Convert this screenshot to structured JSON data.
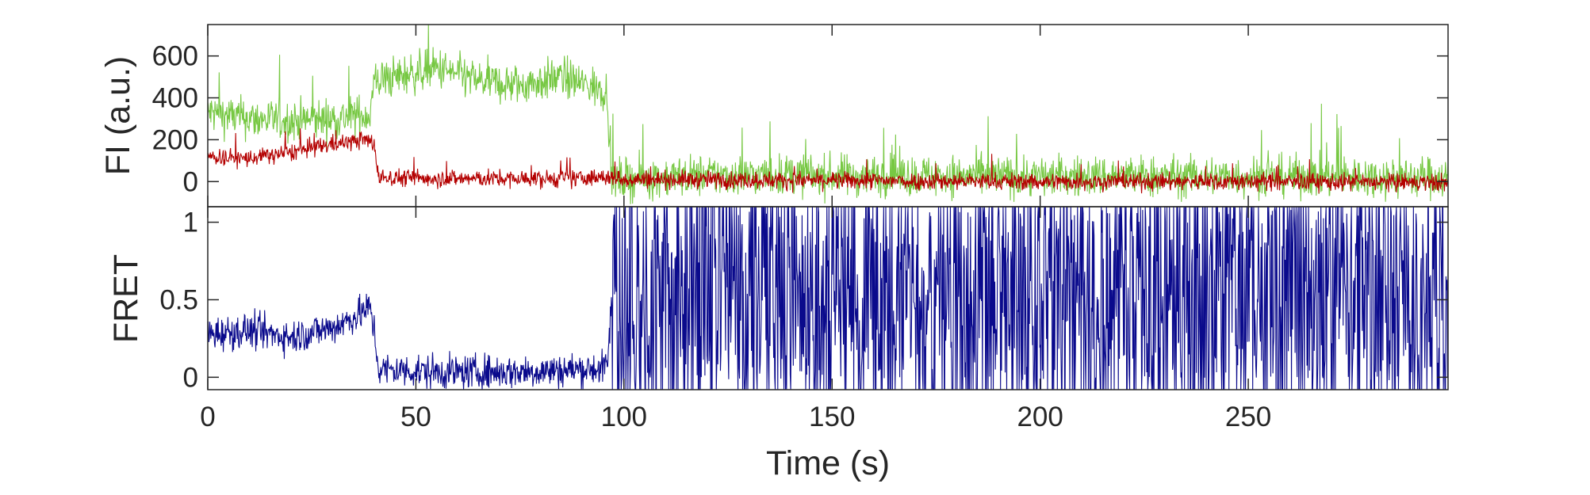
{
  "chart_data": [
    {
      "type": "line",
      "panel": "top",
      "title": "",
      "xlabel": "",
      "ylabel": "FI (a.u.)",
      "xlim": [
        0,
        298
      ],
      "ylim": [
        -120,
        750
      ],
      "yticks": [
        0,
        200,
        400,
        600
      ],
      "ytick_labels": [
        "0",
        "200",
        "400",
        "600"
      ],
      "grid": false,
      "legend": "none",
      "series": [
        {
          "color": "#77c843",
          "points": [
            [
              0,
              330
            ],
            [
              10,
              300
            ],
            [
              20,
              290
            ],
            [
              30,
              300
            ],
            [
              39,
              320
            ],
            [
              40,
              480
            ],
            [
              45,
              500
            ],
            [
              55,
              540
            ],
            [
              65,
              480
            ],
            [
              75,
              460
            ],
            [
              85,
              500
            ],
            [
              96,
              430
            ],
            [
              97,
              10
            ],
            [
              120,
              30
            ],
            [
              150,
              30
            ],
            [
              200,
              25
            ],
            [
              250,
              25
            ],
            [
              298,
              20
            ]
          ],
          "noise": 70
        },
        {
          "color": "#b40000",
          "points": [
            [
              0,
              120
            ],
            [
              10,
              110
            ],
            [
              20,
              140
            ],
            [
              30,
              180
            ],
            [
              38,
              200
            ],
            [
              40,
              180
            ],
            [
              41,
              20
            ],
            [
              60,
              15
            ],
            [
              80,
              12
            ],
            [
              97,
              20
            ],
            [
              98,
              12
            ],
            [
              150,
              5
            ],
            [
              200,
              0
            ],
            [
              250,
              0
            ],
            [
              298,
              -5
            ]
          ],
          "noise": 30
        }
      ]
    },
    {
      "type": "line",
      "panel": "bottom",
      "title": "",
      "xlabel": "Time (s)",
      "ylabel": "FRET",
      "xlim": [
        0,
        298
      ],
      "ylim": [
        -0.08,
        1.1
      ],
      "xticks": [
        0,
        50,
        100,
        150,
        200,
        250
      ],
      "xtick_labels": [
        "0",
        "50",
        "100",
        "150",
        "200",
        "250"
      ],
      "yticks": [
        0,
        0.5,
        1
      ],
      "ytick_labels": [
        "0",
        "0.5",
        "1"
      ],
      "grid": false,
      "legend": "none",
      "series": [
        {
          "color": "#0a0a8c",
          "points": [
            [
              0,
              0.28
            ],
            [
              10,
              0.3
            ],
            [
              20,
              0.26
            ],
            [
              30,
              0.32
            ],
            [
              36,
              0.4
            ],
            [
              39,
              0.45
            ],
            [
              40,
              0.3
            ],
            [
              41,
              0.05
            ],
            [
              60,
              0.03
            ],
            [
              80,
              0.04
            ],
            [
              96,
              0.06
            ],
            [
              97,
              0.5
            ],
            [
              298,
              0.5
            ]
          ],
          "noise": 0.08,
          "random_region": [
            97,
            298
          ]
        }
      ]
    }
  ]
}
